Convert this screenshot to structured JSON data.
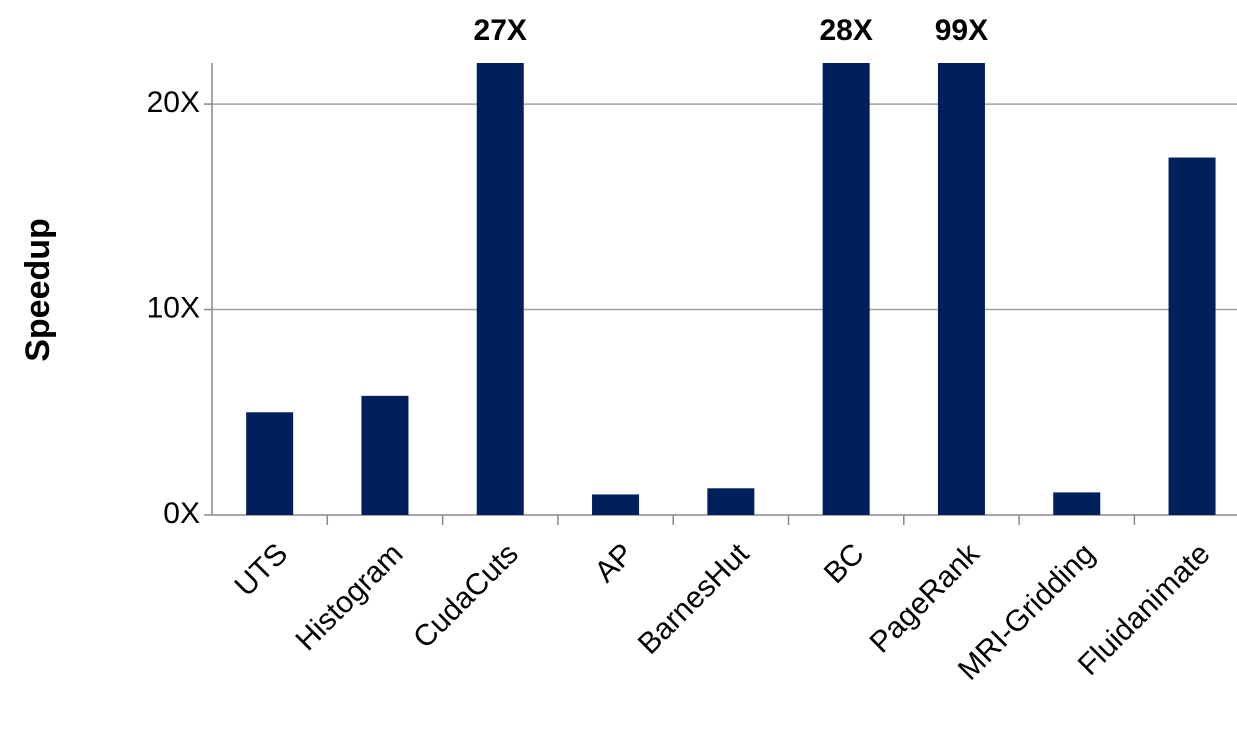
{
  "chart_data": {
    "type": "bar",
    "y_label": "Speedup",
    "categories": [
      "UTS",
      "Histogram",
      "CudaCuts",
      "AP",
      "BarnesHut",
      "BC",
      "PageRank",
      "MRI-Gridding",
      "Fluidanimate"
    ],
    "values": [
      5.0,
      5.8,
      27,
      1.0,
      1.3,
      28,
      99,
      1.1,
      17.4
    ],
    "value_labels": [
      null,
      null,
      "27X",
      null,
      null,
      "28X",
      "99X",
      null,
      null
    ],
    "color": "#00205b",
    "ylim": [
      0,
      22
    ],
    "yticks": [
      {
        "value": 0,
        "label": "0X"
      },
      {
        "value": 10,
        "label": "10X"
      },
      {
        "value": 20,
        "label": "20X"
      }
    ],
    "grid": true
  }
}
